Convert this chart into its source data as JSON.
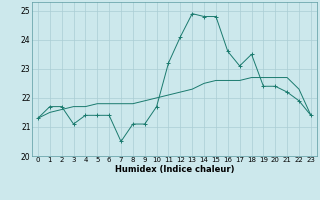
{
  "title": "",
  "xlabel": "Humidex (Indice chaleur)",
  "ylabel": "",
  "xlim": [
    -0.5,
    23.5
  ],
  "ylim": [
    20,
    25.3
  ],
  "yticks": [
    20,
    21,
    22,
    23,
    24,
    25
  ],
  "xticks": [
    0,
    1,
    2,
    3,
    4,
    5,
    6,
    7,
    8,
    9,
    10,
    11,
    12,
    13,
    14,
    15,
    16,
    17,
    18,
    19,
    20,
    21,
    22,
    23
  ],
  "bg_color": "#cce8ec",
  "line_color": "#1a7a6e",
  "grid_color": "#aacdd4",
  "series1_x": [
    0,
    1,
    2,
    3,
    4,
    5,
    6,
    7,
    8,
    9,
    10,
    11,
    12,
    13,
    14,
    15,
    16,
    17,
    18,
    19,
    20,
    21,
    22,
    23
  ],
  "series1_y": [
    21.3,
    21.7,
    21.7,
    21.1,
    21.4,
    21.4,
    21.4,
    20.5,
    21.1,
    21.1,
    21.7,
    23.2,
    24.1,
    24.9,
    24.8,
    24.8,
    23.6,
    23.1,
    23.5,
    22.4,
    22.4,
    22.2,
    21.9,
    21.4
  ],
  "series2_x": [
    0,
    1,
    2,
    3,
    4,
    5,
    6,
    7,
    8,
    9,
    10,
    11,
    12,
    13,
    14,
    15,
    16,
    17,
    18,
    19,
    20,
    21,
    22,
    23
  ],
  "series2_y": [
    21.3,
    21.5,
    21.6,
    21.7,
    21.7,
    21.8,
    21.8,
    21.8,
    21.8,
    21.9,
    22.0,
    22.1,
    22.2,
    22.3,
    22.5,
    22.6,
    22.6,
    22.6,
    22.7,
    22.7,
    22.7,
    22.7,
    22.3,
    21.4
  ]
}
